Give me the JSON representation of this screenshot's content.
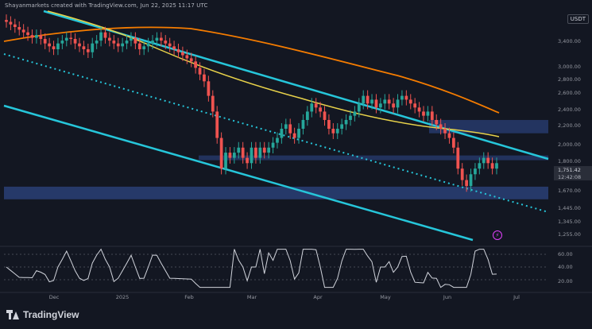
{
  "header": {
    "attribution": "Shayanmarkets created with TradingView.com, Jun 22, 2025 11:17 UTC",
    "currency": "USDT"
  },
  "footer": {
    "brand": "TradingView"
  },
  "colors": {
    "background": "#131722",
    "candle_up": "#26a69a",
    "candle_down": "#ef5350",
    "channel": "#26c6da",
    "ma_fast": "#e8d24a",
    "ma_slow": "#f57c00",
    "zone": "#2a3f75",
    "rsi": "#d1d4dc"
  },
  "chart_data": {
    "type": "candlestick",
    "yaxis": {
      "scale": "log",
      "ticks": [
        "3,400.00",
        "3,000.00",
        "2,800.00",
        "2,600.00",
        "2,400.00",
        "2,200.00",
        "2,000.00",
        "1,800.00",
        "1,670.00",
        "1,445.00",
        "1,345.00",
        "1,255.00"
      ]
    },
    "xaxis": {
      "ticks": [
        "Dec",
        "2025",
        "Feb",
        "Mar",
        "Apr",
        "May",
        "Jun",
        "Jul"
      ]
    },
    "price_labels": {
      "last": "1,751.42",
      "countdown": "12:42:08"
    },
    "candles_close": [
      3700,
      3650,
      3600,
      3550,
      3500,
      3450,
      3400,
      3450,
      3380,
      3300,
      3250,
      3200,
      3300,
      3350,
      3400,
      3380,
      3300,
      3250,
      3200,
      3150,
      3300,
      3350,
      3500,
      3400,
      3350,
      3300,
      3250,
      3300,
      3350,
      3400,
      3300,
      3200,
      3250,
      3300,
      3350,
      3400,
      3350,
      3300,
      3250,
      3200,
      3150,
      3100,
      3050,
      3000,
      2900,
      2800,
      2700,
      2500,
      2300,
      2000,
      1700,
      1850,
      1800,
      1850,
      1900,
      1800,
      1750,
      1900,
      1800,
      1900,
      1850,
      1900,
      1950,
      2000,
      2100,
      2150,
      2050,
      2000,
      2100,
      2200,
      2300,
      2400,
      2350,
      2300,
      2200,
      2100,
      2050,
      2100,
      2150,
      2200,
      2250,
      2300,
      2400,
      2500,
      2400,
      2450,
      2350,
      2400,
      2450,
      2400,
      2350,
      2450,
      2500,
      2450,
      2400,
      2350,
      2300,
      2250,
      2300,
      2200,
      2150,
      2100,
      2050,
      2000,
      1900,
      1700,
      1600,
      1550,
      1650,
      1700,
      1750,
      1800,
      1750,
      1700,
      1750
    ],
    "annotations": {
      "resistance_zone": [
        2050,
        2200
      ],
      "support_level": 1800,
      "demand_zone": [
        1445,
        1545
      ]
    },
    "rsi": {
      "levels": [
        70,
        50,
        30
      ],
      "tick_labels": [
        "60.00",
        "40.00",
        "20.00"
      ]
    }
  }
}
